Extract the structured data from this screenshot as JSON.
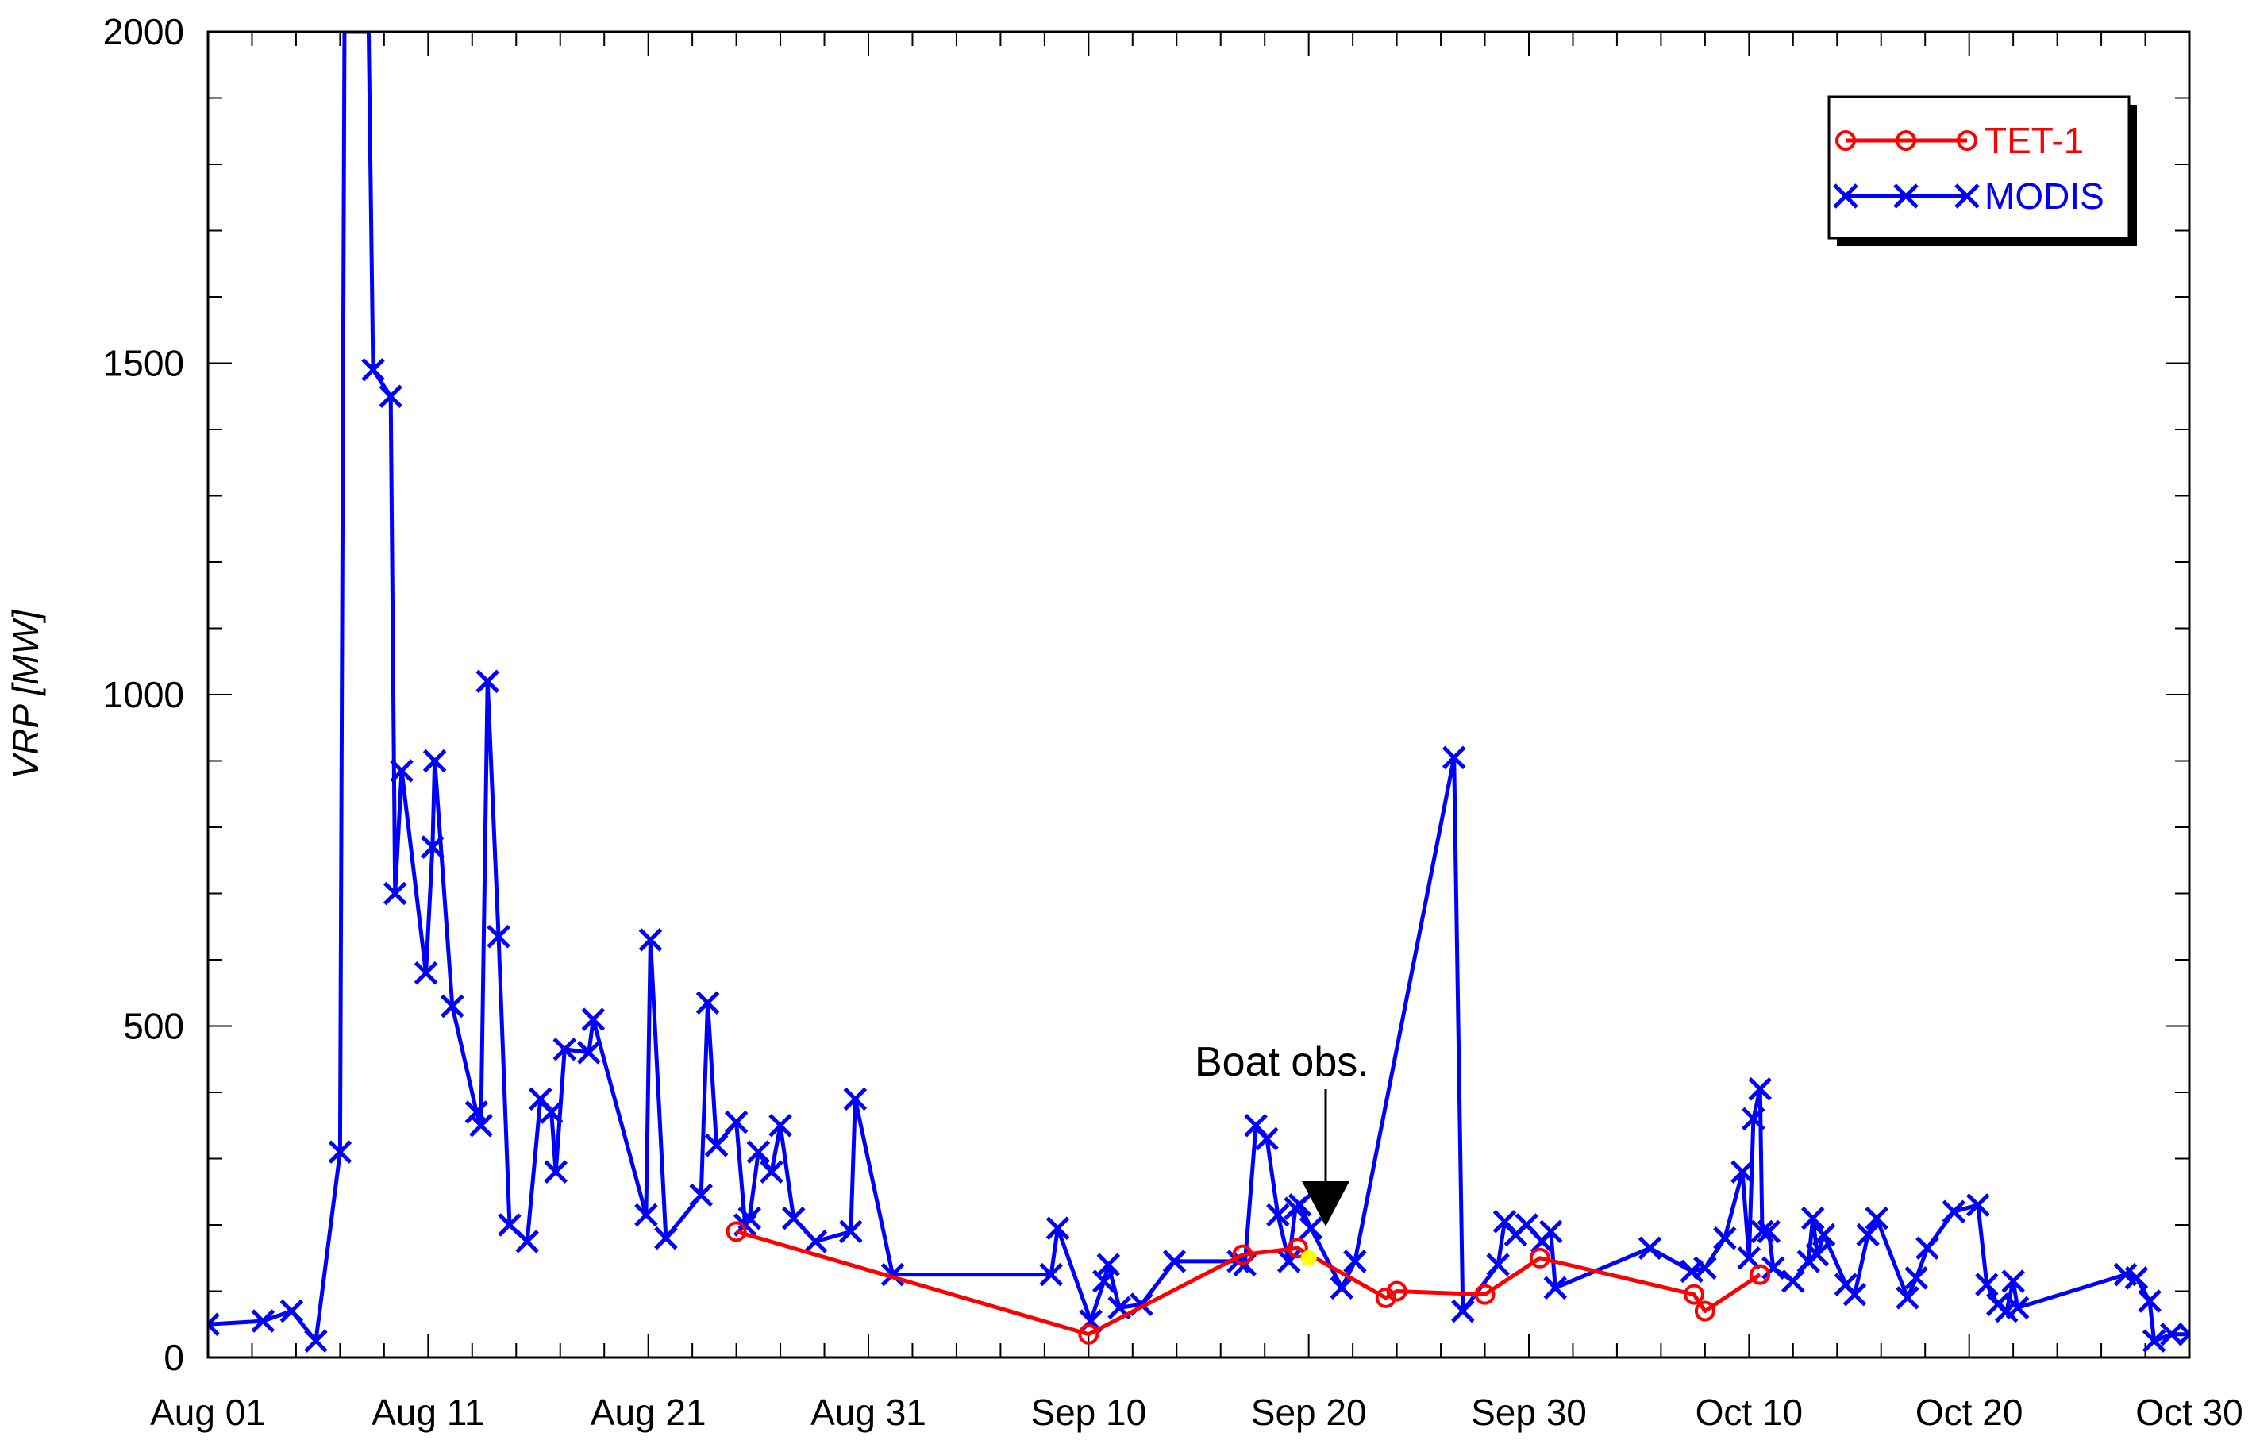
{
  "chart_data": {
    "type": "line",
    "xlabel": "",
    "ylabel": "VRP [MW]",
    "ylim": [
      0,
      2000
    ],
    "xlim": [
      "2014-08-01",
      "2014-10-30"
    ],
    "x_tick_labels": [
      "Aug 01",
      "Aug 11",
      "Aug 21",
      "Aug 31",
      "Sep 10",
      "Sep 20",
      "Sep 30",
      "Oct 10",
      "Oct 20",
      "Oct 30"
    ],
    "y_tick_labels": [
      "0",
      "500",
      "1000",
      "1500",
      "2000"
    ],
    "legend_position": "top-right",
    "annotation": {
      "text": "Boat obs.",
      "x": "2014-09-20",
      "y": 150
    },
    "colors": {
      "tet1": "#ff0000",
      "modis": "#0000ff",
      "boat": "#ffff00"
    },
    "series": [
      {
        "name": "TET-1",
        "marker": "circle",
        "x": [
          "2014-08-25",
          "2014-09-10",
          "2014-09-17",
          "2014-09-19.5",
          "2014-09-23.5",
          "2014-09-24",
          "2014-09-28",
          "2014-09-30.5",
          "2014-10-07.5",
          "2014-10-08",
          "2014-10-10.5"
        ],
        "values": [
          190,
          35,
          155,
          165,
          90,
          100,
          95,
          150,
          95,
          70,
          125
        ]
      },
      {
        "name": "MODIS",
        "marker": "x",
        "x": [
          "2014-08-01",
          "2014-08-03.5",
          "2014-08-04.8",
          "2014-08-05.9",
          "2014-08-07",
          "2014-08-07.2",
          "2014-08-08.3",
          "2014-08-08.5",
          "2014-08-09.3",
          "2014-08-09.5",
          "2014-08-09.8",
          "2014-08-10.9",
          "2014-08-11.2",
          "2014-08-11.3",
          "2014-08-12.1",
          "2014-08-13.2",
          "2014-08-13.4",
          "2014-08-13.7",
          "2014-08-14.2",
          "2014-08-14.7",
          "2014-08-15.5",
          "2014-08-16.1",
          "2014-08-16.6",
          "2014-08-16.8",
          "2014-08-17.2",
          "2014-08-18.3",
          "2014-08-18.5",
          "2014-08-20.9",
          "2014-08-21.1",
          "2014-08-21.8",
          "2014-08-23.4",
          "2014-08-23.7",
          "2014-08-24.1",
          "2014-08-25",
          "2014-08-25.4",
          "2014-08-25.6",
          "2014-08-26",
          "2014-08-26.6",
          "2014-08-27",
          "2014-08-27.6",
          "2014-08-28.6",
          "2014-08-30.2",
          "2014-08-30.4",
          "2014-09-01.1",
          "2014-09-08.3",
          "2014-09-08.6",
          "2014-09-10.1",
          "2014-09-10.7",
          "2014-09-10.9",
          "2014-09-11.4",
          "2014-09-12.4",
          "2014-09-13.9",
          "2014-09-16.8",
          "2014-09-17.1",
          "2014-09-17.6",
          "2014-09-18.1",
          "2014-09-18.6",
          "2014-09-19.1",
          "2014-09-19.4",
          "2014-09-19.6",
          "2014-09-20.1",
          "2014-09-21.5",
          "2014-09-22.1",
          "2014-09-26.6",
          "2014-09-27",
          "2014-09-28.6",
          "2014-09-28.9",
          "2014-09-29.4",
          "2014-09-29.9",
          "2014-09-30.6",
          "2014-09-31",
          "2014-10-01.2",
          "2014-10-05.5",
          "2014-10-07.4",
          "2014-10-08",
          "2014-10-08.9",
          "2014-10-09.7",
          "2014-10-10",
          "2014-10-10.2",
          "2014-10-10.5",
          "2014-10-10.6",
          "2014-10-10.9",
          "2014-10-11.1",
          "2014-10-12",
          "2014-10-12.7",
          "2014-10-12.9",
          "2014-10-13.1",
          "2014-10-13.4",
          "2014-10-14.4",
          "2014-10-14.8",
          "2014-10-15.4",
          "2014-10-15.8",
          "2014-10-17.2",
          "2014-10-17.6",
          "2014-10-18.1",
          "2014-10-19.3",
          "2014-10-20.4",
          "2014-10-20.8",
          "2014-10-21.3",
          "2014-10-21.7",
          "2014-10-22",
          "2014-10-22.2",
          "2014-10-27.1",
          "2014-10-27.6",
          "2014-10-28.2",
          "2014-10-28.4",
          "2014-10-29.2",
          "2014-10-30"
        ],
        "values": [
          50,
          55,
          70,
          25,
          310,
          2000,
          2000,
          1490,
          1450,
          700,
          885,
          580,
          770,
          900,
          530,
          370,
          350,
          1020,
          635,
          200,
          175,
          390,
          370,
          280,
          465,
          460,
          510,
          215,
          630,
          180,
          245,
          535,
          320,
          355,
          200,
          210,
          310,
          280,
          350,
          210,
          175,
          190,
          390,
          125,
          125,
          195,
          55,
          115,
          140,
          75,
          80,
          145,
          145,
          140,
          350,
          330,
          215,
          145,
          225,
          230,
          195,
          105,
          145,
          905,
          70,
          140,
          205,
          185,
          200,
          175,
          190,
          105,
          165,
          130,
          135,
          180,
          280,
          150,
          360,
          405,
          190,
          190,
          135,
          115,
          145,
          210,
          155,
          185,
          110,
          95,
          185,
          210,
          90,
          120,
          165,
          220,
          230,
          110,
          80,
          70,
          115,
          75,
          125,
          120,
          85,
          25,
          35,
          35
        ]
      }
    ]
  }
}
